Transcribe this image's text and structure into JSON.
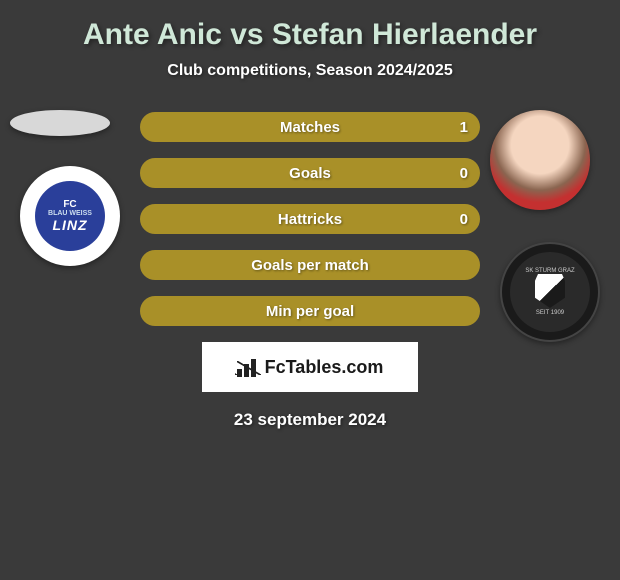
{
  "title": "Ante Anic vs Stefan Hierlaender",
  "subtitle": "Club competitions, Season 2024/2025",
  "date": "23 september 2024",
  "brand": "FcTables.com",
  "colors": {
    "background": "#3a3a3a",
    "title": "#d0e8d8",
    "bar_fill": "#a99028",
    "bar_border": "#a99028",
    "text": "#ffffff",
    "brand_box": "#ffffff"
  },
  "player_left": {
    "name": "Ante Anic",
    "club_short": "FC BLAU WEISS LINZ",
    "club_badge_bg": "#2a3f9a"
  },
  "player_right": {
    "name": "Stefan Hierlaender",
    "club_short": "SK STURM GRAZ",
    "club_badge_bg": "#1a1a1a"
  },
  "stats": [
    {
      "label": "Matches",
      "value": "1"
    },
    {
      "label": "Goals",
      "value": "0"
    },
    {
      "label": "Hattricks",
      "value": "0"
    },
    {
      "label": "Goals per match",
      "value": ""
    },
    {
      "label": "Min per goal",
      "value": ""
    }
  ]
}
